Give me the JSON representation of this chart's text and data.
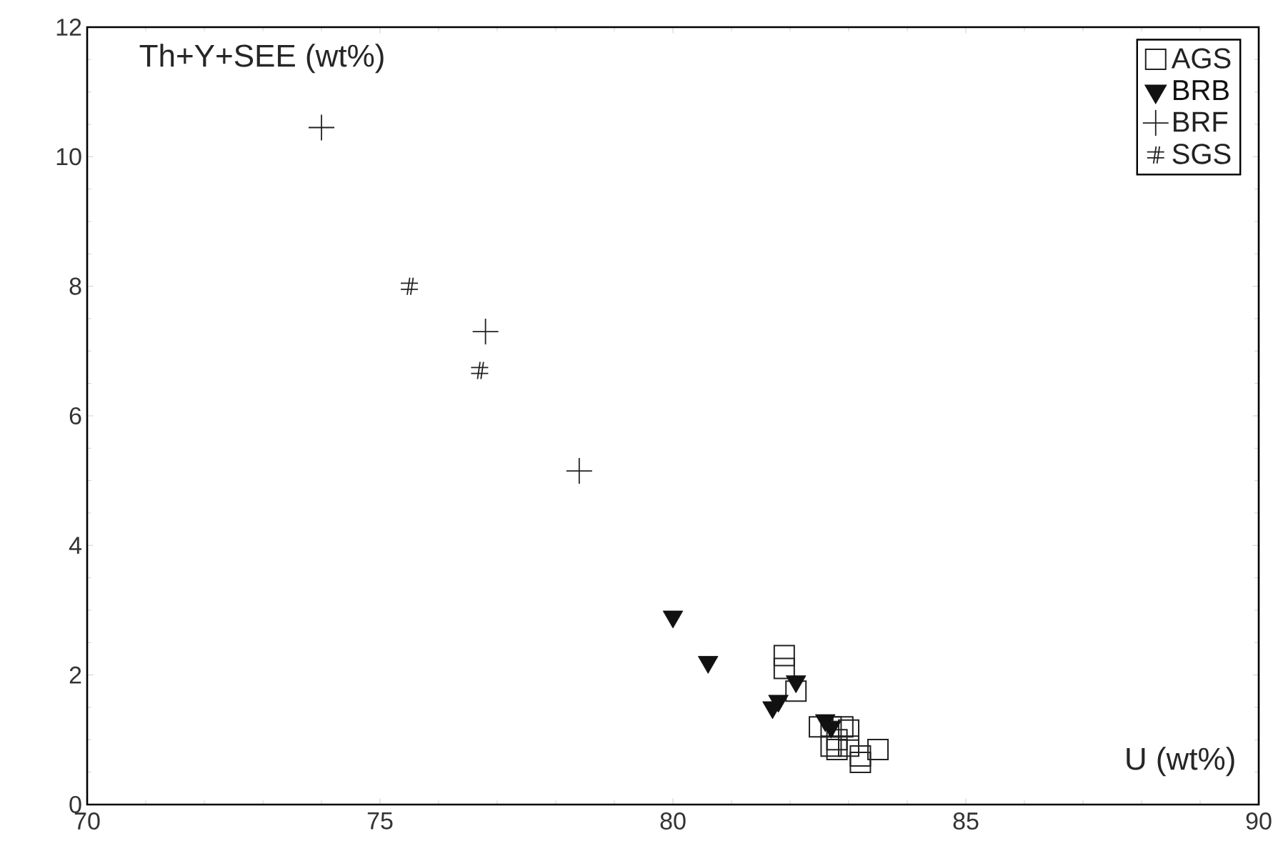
{
  "chart_data": {
    "type": "scatter",
    "xlabel": "U (wt%)",
    "ylabel": "Th+Y+SEE (wt%)",
    "xlim": [
      70,
      90
    ],
    "ylim": [
      0,
      12
    ],
    "xticks": [
      70,
      75,
      80,
      85,
      90
    ],
    "yticks": [
      0,
      2,
      4,
      6,
      8,
      10,
      12
    ],
    "grid": false,
    "legend": "top right",
    "series": [
      {
        "name": "AGS",
        "color": "#222222",
        "marker": "square",
        "x": [
          81.9,
          81.9,
          82.1,
          82.5,
          82.7,
          82.9,
          83.0,
          82.7,
          82.8,
          83.0,
          83.2,
          83.2,
          83.5,
          82.8
        ],
        "values": [
          2.3,
          2.1,
          1.75,
          1.2,
          1.2,
          1.2,
          1.15,
          0.9,
          0.85,
          0.9,
          0.75,
          0.65,
          0.85,
          1.0
        ]
      },
      {
        "name": "BRB",
        "color": "#111111",
        "marker": "triangle",
        "x": [
          80.0,
          80.6,
          82.1,
          81.7,
          81.8,
          82.6,
          82.7
        ],
        "values": [
          2.9,
          2.2,
          1.9,
          1.5,
          1.6,
          1.3,
          1.2
        ]
      },
      {
        "name": "BRF",
        "color": "#222222",
        "marker": "cross",
        "x": [
          74.0,
          76.8,
          78.4
        ],
        "values": [
          10.45,
          7.3,
          5.15
        ]
      },
      {
        "name": "SGS",
        "color": "#222222",
        "marker": "cross",
        "x": [
          75.5,
          76.7
        ],
        "values": [
          8.0,
          6.7
        ]
      }
    ]
  }
}
